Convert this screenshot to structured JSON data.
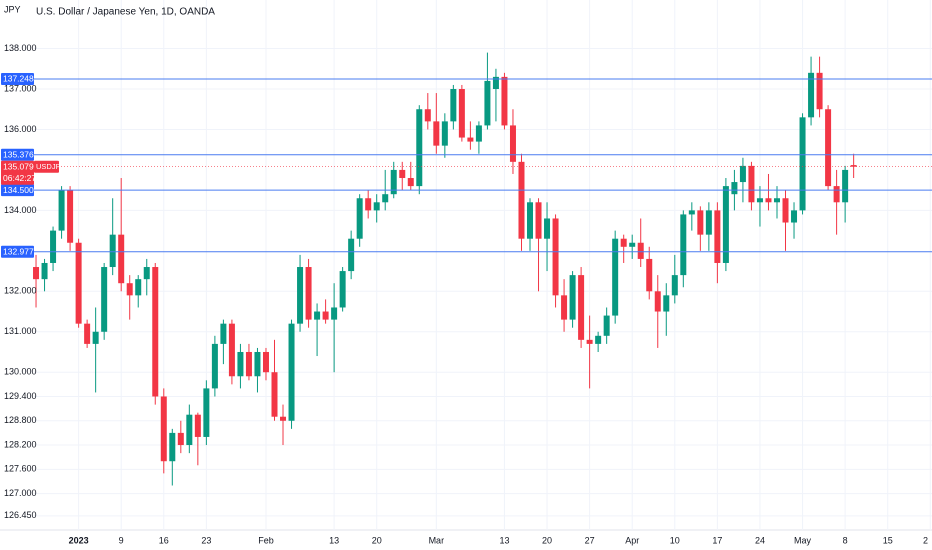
{
  "chart_data": {
    "type": "candlestick",
    "title": "U.S. Dollar / Japanese Yen, 1D, OANDA",
    "currency": "JPY",
    "colors": {
      "up": "#089981",
      "down": "#f23645",
      "level": "#4a7cf0"
    },
    "grid": true,
    "open": [
      132.6,
      132.3,
      132.7,
      133.5,
      134.5,
      133.2,
      131.2,
      130.7,
      131.0,
      132.6,
      133.4,
      132.2,
      131.9,
      132.3,
      132.6,
      129.4,
      127.8,
      128.5,
      128.2,
      128.95,
      128.4,
      129.6,
      130.7,
      131.2,
      129.9,
      130.5,
      129.9,
      130.5,
      130.0,
      128.9,
      128.8,
      131.2,
      132.6,
      131.3,
      131.5,
      131.3,
      131.6,
      132.5,
      133.3,
      134.3,
      134.0,
      134.2,
      134.4,
      135.0,
      134.8,
      134.6,
      136.5,
      136.2,
      135.6,
      136.2,
      137.0,
      135.8,
      135.7,
      136.1,
      137.0,
      137.3,
      136.1,
      135.2,
      133.3,
      134.2,
      133.3,
      133.8,
      131.9,
      131.3,
      132.4,
      130.8,
      130.7,
      130.9,
      131.4,
      133.3,
      133.1,
      133.2,
      132.8,
      132.0,
      131.5,
      131.9,
      132.4,
      133.9,
      134.0,
      133.4,
      134.0,
      132.7,
      134.4,
      134.7,
      135.1,
      134.2,
      134.3,
      134.2,
      134.3,
      133.7,
      134.0,
      136.3,
      137.4,
      136.5,
      134.6,
      134.2,
      135.12
    ],
    "high": [
      132.9,
      132.8,
      133.6,
      134.6,
      134.6,
      133.3,
      131.3,
      131.6,
      132.7,
      134.3,
      134.8,
      132.4,
      132.4,
      132.8,
      132.7,
      129.6,
      128.6,
      128.8,
      129.2,
      129.0,
      129.8,
      130.9,
      131.3,
      131.3,
      130.7,
      130.7,
      130.6,
      130.6,
      130.8,
      129.2,
      131.3,
      132.9,
      132.8,
      131.7,
      131.8,
      132.2,
      132.6,
      133.5,
      134.4,
      134.5,
      134.4,
      135.0,
      135.2,
      135.2,
      135.2,
      136.6,
      136.9,
      136.9,
      136.4,
      137.1,
      137.1,
      136.2,
      136.2,
      137.9,
      137.5,
      137.4,
      136.5,
      135.4,
      134.3,
      134.3,
      134.2,
      133.9,
      132.3,
      132.5,
      132.6,
      131.4,
      131.0,
      131.6,
      133.5,
      133.4,
      133.4,
      133.8,
      133.1,
      132.4,
      132.2,
      132.9,
      134.0,
      134.2,
      134.1,
      134.2,
      134.2,
      134.8,
      135.0,
      135.3,
      135.2,
      134.6,
      134.9,
      134.6,
      134.5,
      134.2,
      136.4,
      137.8,
      137.8,
      136.6,
      135.0,
      135.1,
      135.4
    ],
    "low": [
      131.6,
      132.0,
      132.5,
      133.3,
      133.0,
      131.1,
      130.6,
      129.5,
      130.8,
      132.4,
      132.0,
      131.3,
      131.6,
      131.9,
      129.2,
      127.5,
      127.2,
      128.0,
      128.0,
      127.7,
      128.2,
      129.4,
      130.2,
      129.7,
      129.6,
      129.8,
      129.5,
      129.8,
      128.8,
      128.2,
      128.6,
      131.0,
      131.1,
      130.4,
      131.2,
      130.0,
      131.5,
      132.3,
      133.1,
      133.8,
      133.7,
      134.0,
      134.3,
      134.5,
      134.5,
      134.4,
      136.0,
      135.4,
      135.3,
      136.0,
      135.7,
      135.5,
      135.4,
      136.0,
      136.2,
      136.0,
      134.9,
      133.0,
      133.0,
      132.0,
      132.5,
      131.6,
      131.0,
      131.1,
      130.6,
      129.6,
      130.5,
      130.7,
      131.2,
      132.7,
      132.8,
      132.6,
      131.8,
      130.6,
      130.9,
      131.7,
      132.1,
      133.5,
      133.0,
      133.0,
      132.2,
      132.5,
      134.0,
      134.2,
      134.0,
      133.6,
      134.0,
      133.8,
      133.0,
      133.3,
      133.9,
      136.1,
      136.3,
      134.5,
      133.4,
      133.7,
      134.8
    ],
    "close": [
      132.3,
      132.7,
      133.5,
      134.5,
      133.2,
      131.2,
      130.7,
      131.0,
      132.6,
      133.4,
      132.2,
      131.9,
      132.3,
      132.6,
      129.4,
      127.8,
      128.5,
      128.2,
      128.95,
      128.4,
      129.6,
      130.7,
      131.2,
      129.9,
      130.5,
      129.9,
      130.5,
      130.0,
      128.9,
      128.8,
      131.2,
      132.6,
      131.3,
      131.5,
      131.3,
      131.6,
      132.5,
      133.3,
      134.3,
      134.0,
      134.2,
      134.4,
      135.0,
      134.8,
      134.6,
      136.5,
      136.2,
      135.6,
      136.2,
      137.0,
      135.8,
      135.7,
      136.1,
      137.2,
      137.3,
      136.1,
      135.2,
      133.3,
      134.2,
      133.3,
      133.8,
      131.9,
      131.3,
      132.4,
      130.8,
      130.7,
      130.9,
      131.4,
      133.3,
      133.1,
      133.2,
      132.8,
      132.0,
      131.5,
      131.9,
      132.4,
      133.9,
      134.0,
      133.4,
      134.0,
      132.7,
      134.6,
      134.7,
      135.1,
      134.2,
      134.3,
      134.2,
      134.3,
      133.7,
      134.0,
      136.3,
      137.4,
      136.5,
      134.6,
      134.2,
      135.0,
      135.079
    ],
    "xlim": [
      -4.23,
      105.2
    ],
    "xticks": [
      {
        "value": 5,
        "label": "2023"
      },
      {
        "value": 10,
        "label": "9"
      },
      {
        "value": 15,
        "label": "16"
      },
      {
        "value": 20,
        "label": "23"
      },
      {
        "value": 27,
        "label": "Feb"
      },
      {
        "value": 35,
        "label": "13"
      },
      {
        "value": 40,
        "label": "20"
      },
      {
        "value": 47,
        "label": "Mar"
      },
      {
        "value": 55,
        "label": "13"
      },
      {
        "value": 60,
        "label": "20"
      },
      {
        "value": 65,
        "label": "27"
      },
      {
        "value": 70,
        "label": "Apr"
      },
      {
        "value": 75,
        "label": "10"
      },
      {
        "value": 80,
        "label": "17"
      },
      {
        "value": 85,
        "label": "24"
      },
      {
        "value": 90,
        "label": "May"
      },
      {
        "value": 95,
        "label": "8"
      },
      {
        "value": 100,
        "label": "15"
      },
      {
        "value": 105,
        "label": "2"
      }
    ],
    "ylim": [
      126.1,
      139.2
    ],
    "yticks": [
      {
        "value": 138,
        "label": "138.000"
      },
      {
        "value": 137,
        "label": "137.000"
      },
      {
        "value": 136,
        "label": "136.000"
      },
      {
        "value": 134,
        "label": "134.000"
      },
      {
        "value": 132,
        "label": "132.000"
      },
      {
        "value": 131,
        "label": "131.000"
      },
      {
        "value": 130,
        "label": "130.000"
      },
      {
        "value": 129.4,
        "label": "129.400"
      },
      {
        "value": 128.8,
        "label": "128.800"
      },
      {
        "value": 128.2,
        "label": "128.200"
      },
      {
        "value": 127.6,
        "label": "127.600"
      },
      {
        "value": 127,
        "label": "127.000"
      },
      {
        "value": 126.45,
        "label": "126.450"
      }
    ],
    "levels": [
      137.248,
      135.376,
      {
        "value": 134.5,
        "label": "134.500"
      },
      132.977
    ],
    "current": {
      "symbol": "USDJPY",
      "price": 135.079,
      "countdown": "06:42:27"
    }
  }
}
